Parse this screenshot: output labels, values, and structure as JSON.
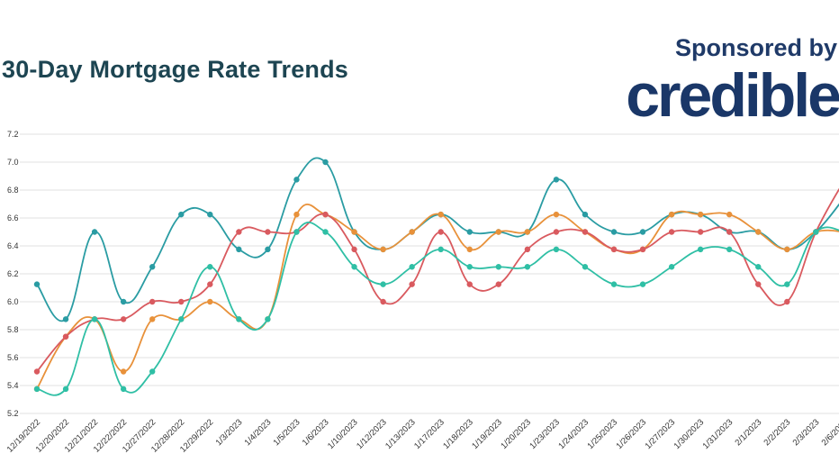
{
  "header": {
    "title": "30-Day Mortgage Rate Trends",
    "sponsor_label": "Sponsored by",
    "brand": "credible"
  },
  "chart_data": {
    "type": "line",
    "title": "30-Day Mortgage Rate Trends",
    "xlabel": "",
    "ylabel": "",
    "ylim": [
      5.2,
      7.2
    ],
    "yticks": [
      "7.2",
      "7.0",
      "6.8",
      "6.6",
      "6.4",
      "6.2",
      "6.0",
      "5.8",
      "5.6",
      "5.4",
      "5.2"
    ],
    "grid": true,
    "legend": "none",
    "categories": [
      "12/19/2022",
      "12/20/2022",
      "12/21/2022",
      "12/22/2022",
      "12/27/2022",
      "12/28/2022",
      "12/29/2022",
      "1/3/2023",
      "1/4/2023",
      "1/5/2023",
      "1/6/2023",
      "1/10/2023",
      "1/12/2023",
      "1/13/2023",
      "1/17/2023",
      "1/18/2023",
      "1/19/2023",
      "1/20/2023",
      "1/23/2023",
      "1/24/2023",
      "1/25/2023",
      "1/26/2023",
      "1/27/2023",
      "1/30/2023",
      "1/31/2023",
      "2/1/2023",
      "2/2/2023",
      "2/3/2023",
      "2/6/2023"
    ],
    "series": [
      {
        "color": "#2a9ca3",
        "values": [
          6.125,
          5.875,
          6.5,
          6.0,
          6.25,
          6.625,
          6.625,
          6.375,
          6.375,
          6.875,
          7.0,
          6.5,
          6.375,
          6.5,
          6.625,
          6.5,
          6.5,
          6.5,
          6.875,
          6.625,
          6.5,
          6.5,
          6.625,
          6.625,
          6.5,
          6.5,
          6.375,
          6.5,
          6.75
        ]
      },
      {
        "color": "#e8913a",
        "values": [
          5.375,
          5.75,
          5.875,
          5.5,
          5.875,
          5.875,
          6.0,
          5.875,
          5.875,
          6.625,
          6.625,
          6.5,
          6.375,
          6.5,
          6.625,
          6.375,
          6.5,
          6.5,
          6.625,
          6.5,
          6.375,
          6.375,
          6.625,
          6.625,
          6.625,
          6.5,
          6.375,
          6.5,
          6.5
        ]
      },
      {
        "color": "#d95a5f",
        "values": [
          5.5,
          5.75,
          5.875,
          5.875,
          6.0,
          6.0,
          6.125,
          6.5,
          6.5,
          6.5,
          6.625,
          6.375,
          6.0,
          6.125,
          6.5,
          6.125,
          6.125,
          6.375,
          6.5,
          6.5,
          6.375,
          6.375,
          6.5,
          6.5,
          6.5,
          6.125,
          6.0,
          6.5,
          6.875
        ]
      },
      {
        "color": "#2fbfa5",
        "values": [
          5.375,
          5.375,
          5.875,
          5.375,
          5.5,
          5.875,
          6.25,
          5.875,
          5.875,
          6.5,
          6.5,
          6.25,
          6.125,
          6.25,
          6.375,
          6.25,
          6.25,
          6.25,
          6.375,
          6.25,
          6.125,
          6.125,
          6.25,
          6.375,
          6.375,
          6.25,
          6.125,
          6.5,
          6.5
        ]
      }
    ]
  }
}
